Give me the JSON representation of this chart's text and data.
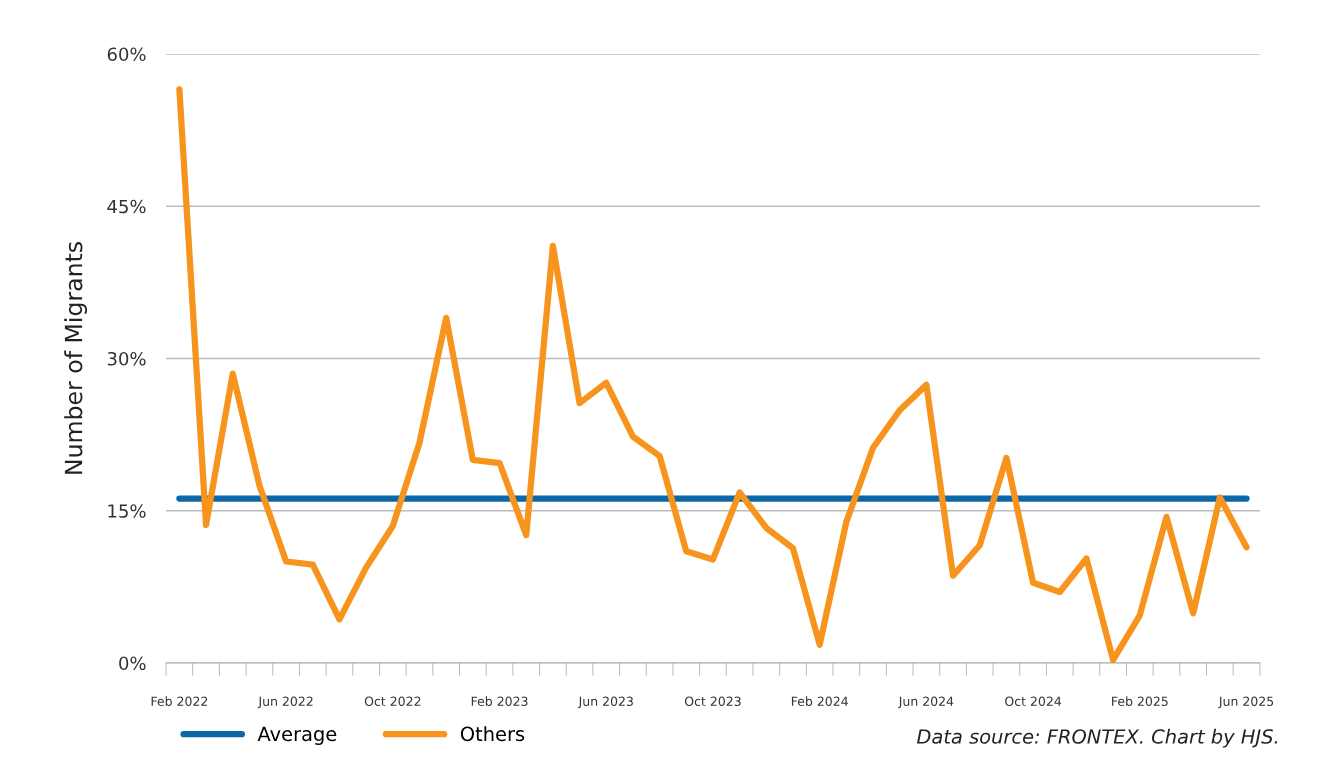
{
  "chart_data": {
    "type": "line",
    "ylabel": "Number of Migrants",
    "categories": [
      "Feb 2022",
      null,
      null,
      null,
      "Jun 2022",
      null,
      null,
      null,
      "Oct 2022",
      null,
      null,
      null,
      "Feb 2023",
      null,
      null,
      null,
      "Jun 2023",
      null,
      null,
      null,
      "Oct 2023",
      null,
      null,
      null,
      "Feb 2024",
      null,
      null,
      null,
      "Jun 2024",
      null,
      null,
      null,
      "Oct 2024",
      null,
      null,
      null,
      "Feb 2025",
      null,
      null,
      null,
      "Jun 2025"
    ],
    "series": [
      {
        "name": "Average",
        "color": "#0b67a8",
        "values": [
          16.2,
          16.2,
          16.2,
          16.2,
          16.2,
          16.2,
          16.2,
          16.2,
          16.2,
          16.2,
          16.2,
          16.2,
          16.2,
          16.2,
          16.2,
          16.2,
          16.2,
          16.2,
          16.2,
          16.2,
          16.2,
          16.2,
          16.2,
          16.2,
          16.2,
          16.2,
          16.2,
          16.2,
          16.2,
          16.2,
          16.2,
          16.2,
          16.2,
          16.2,
          16.2,
          16.2,
          16.2,
          16.2,
          16.2,
          16.2,
          16.2
        ]
      },
      {
        "name": "Others",
        "color": "#f7941d",
        "values": [
          56.5,
          13.6,
          28.5,
          17.5,
          10.0,
          9.7,
          4.3,
          9.4,
          13.5,
          21.7,
          34.0,
          20.0,
          19.7,
          12.6,
          41.1,
          25.6,
          27.6,
          22.3,
          20.4,
          11.0,
          10.2,
          16.8,
          13.3,
          11.3,
          1.8,
          13.9,
          21.2,
          24.9,
          27.4,
          8.6,
          11.6,
          20.2,
          7.9,
          7.0,
          10.3,
          0.3,
          4.7,
          14.4,
          4.9,
          16.3,
          11.4
        ]
      }
    ],
    "ylim": [
      0,
      60
    ],
    "yticks": [
      {
        "value": 0,
        "label": "0%"
      },
      {
        "value": 15,
        "label": "15%"
      },
      {
        "value": 30,
        "label": "30%"
      },
      {
        "value": 45,
        "label": "45%"
      },
      {
        "value": 60,
        "label": "60%"
      }
    ],
    "grid": "y",
    "legend": "bottom left",
    "marker": "none",
    "line_style": "solid",
    "annotations": [
      "Data source: FRONTEX. Chart by HJS."
    ]
  }
}
